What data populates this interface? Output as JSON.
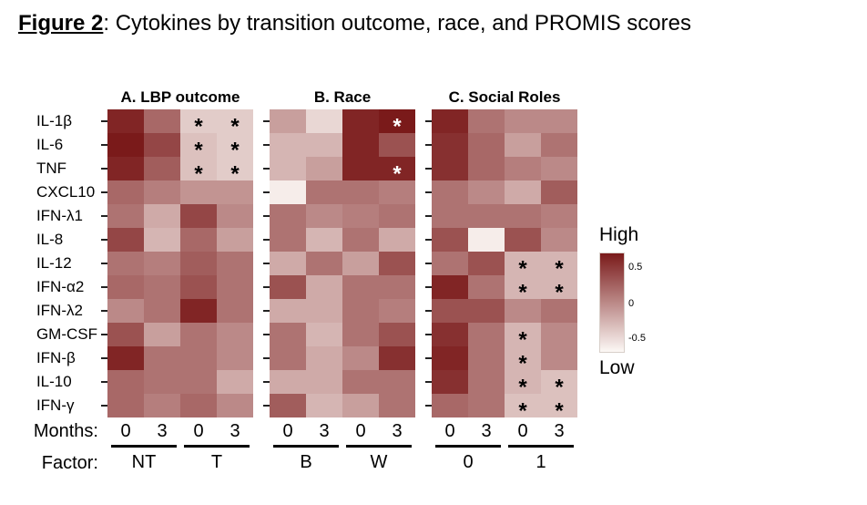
{
  "title": {
    "label": "Figure 2",
    "rest": ": Cytokines by transition outcome, race, and PROMIS scores"
  },
  "axis": {
    "months_label": "Months:",
    "factor_label": "Factor:"
  },
  "legend": {
    "high_label": "High",
    "low_label": "Low",
    "ticks": [
      "0.5",
      "0",
      "-0.5"
    ],
    "high_color": "#7a1a1a",
    "low_color": "#fcf8f5"
  },
  "chart_data": {
    "type": "heatmap",
    "value_range": [
      -0.5,
      0.5
    ],
    "rows": [
      "IL-1β",
      "IL-6",
      "TNF",
      "CXCL10",
      "IFN-λ1",
      "IL-8",
      "IL-12",
      "IFN-α2",
      "IFN-λ2",
      "GM-CSF",
      "IFN-β",
      "IL-10",
      "IFN-γ"
    ],
    "panels": [
      {
        "id": "A",
        "title": "A. LBP outcome",
        "months": [
          "0",
          "3",
          "0",
          "3"
        ],
        "factors": [
          "NT",
          "T"
        ],
        "sig_color": "#000000",
        "values": [
          [
            0.45,
            0.15,
            -0.3,
            -0.3
          ],
          [
            0.5,
            0.3,
            -0.25,
            -0.3
          ],
          [
            0.45,
            0.2,
            -0.25,
            -0.3
          ],
          [
            0.15,
            0.05,
            -0.05,
            -0.05
          ],
          [
            0.1,
            -0.15,
            0.3,
            0.0
          ],
          [
            0.3,
            -0.2,
            0.15,
            -0.1
          ],
          [
            0.1,
            0.05,
            0.2,
            0.1
          ],
          [
            0.15,
            0.1,
            0.25,
            0.1
          ],
          [
            0.0,
            0.1,
            0.45,
            0.1
          ],
          [
            0.25,
            -0.1,
            0.1,
            0.0
          ],
          [
            0.45,
            0.1,
            0.1,
            0.0
          ],
          [
            0.15,
            0.1,
            0.1,
            -0.15
          ],
          [
            0.15,
            0.05,
            0.15,
            0.0
          ]
        ],
        "sig": [
          [
            0,
            0,
            1,
            1
          ],
          [
            0,
            0,
            1,
            1
          ],
          [
            0,
            0,
            1,
            1
          ],
          [
            0,
            0,
            0,
            0
          ],
          [
            0,
            0,
            0,
            0
          ],
          [
            0,
            0,
            0,
            0
          ],
          [
            0,
            0,
            0,
            0
          ],
          [
            0,
            0,
            0,
            0
          ],
          [
            0,
            0,
            0,
            0
          ],
          [
            0,
            0,
            0,
            0
          ],
          [
            0,
            0,
            0,
            0
          ],
          [
            0,
            0,
            0,
            0
          ],
          [
            0,
            0,
            0,
            0
          ]
        ]
      },
      {
        "id": "B",
        "title": "B. Race",
        "months": [
          "0",
          "3",
          "0",
          "3"
        ],
        "factors": [
          "B",
          "W"
        ],
        "sig_color": "#ffffff",
        "values": [
          [
            -0.1,
            -0.35,
            0.45,
            0.5
          ],
          [
            -0.2,
            -0.2,
            0.45,
            0.25
          ],
          [
            -0.2,
            -0.1,
            0.45,
            0.45
          ],
          [
            -0.45,
            0.1,
            0.1,
            0.05
          ],
          [
            0.1,
            0.0,
            0.05,
            0.1
          ],
          [
            0.1,
            -0.2,
            0.1,
            -0.15
          ],
          [
            -0.15,
            0.1,
            -0.1,
            0.25
          ],
          [
            0.25,
            -0.15,
            0.1,
            0.1
          ],
          [
            -0.15,
            -0.15,
            0.1,
            0.05
          ],
          [
            0.1,
            -0.2,
            0.1,
            0.25
          ],
          [
            0.1,
            -0.15,
            0.0,
            0.4
          ],
          [
            -0.15,
            -0.15,
            0.1,
            0.1
          ],
          [
            0.2,
            -0.2,
            -0.1,
            0.1
          ]
        ],
        "sig": [
          [
            0,
            0,
            0,
            1
          ],
          [
            0,
            0,
            0,
            0
          ],
          [
            0,
            0,
            0,
            1
          ],
          [
            0,
            0,
            0,
            0
          ],
          [
            0,
            0,
            0,
            0
          ],
          [
            0,
            0,
            0,
            0
          ],
          [
            0,
            0,
            0,
            0
          ],
          [
            0,
            0,
            0,
            0
          ],
          [
            0,
            0,
            0,
            0
          ],
          [
            0,
            0,
            0,
            0
          ],
          [
            0,
            0,
            0,
            0
          ],
          [
            0,
            0,
            0,
            0
          ],
          [
            0,
            0,
            0,
            0
          ]
        ]
      },
      {
        "id": "C",
        "title": "C. Social Roles",
        "months": [
          "0",
          "3",
          "0",
          "3"
        ],
        "factors": [
          "0",
          "1"
        ],
        "sig_color": "#000000",
        "values": [
          [
            0.45,
            0.1,
            0.0,
            0.0
          ],
          [
            0.4,
            0.15,
            -0.1,
            0.1
          ],
          [
            0.4,
            0.15,
            0.05,
            0.0
          ],
          [
            0.1,
            0.0,
            -0.15,
            0.2
          ],
          [
            0.1,
            0.1,
            0.1,
            0.05
          ],
          [
            0.25,
            -0.45,
            0.25,
            0.0
          ],
          [
            0.1,
            0.25,
            -0.2,
            -0.2
          ],
          [
            0.45,
            0.1,
            -0.2,
            -0.2
          ],
          [
            0.25,
            0.25,
            0.0,
            0.1
          ],
          [
            0.4,
            0.1,
            -0.2,
            0.0
          ],
          [
            0.45,
            0.1,
            -0.2,
            0.0
          ],
          [
            0.4,
            0.1,
            -0.2,
            -0.25
          ],
          [
            0.15,
            0.1,
            -0.25,
            -0.25
          ]
        ],
        "sig": [
          [
            0,
            0,
            0,
            0
          ],
          [
            0,
            0,
            0,
            0
          ],
          [
            0,
            0,
            0,
            0
          ],
          [
            0,
            0,
            0,
            0
          ],
          [
            0,
            0,
            0,
            0
          ],
          [
            0,
            0,
            0,
            0
          ],
          [
            0,
            0,
            1,
            1
          ],
          [
            0,
            0,
            1,
            1
          ],
          [
            0,
            0,
            0,
            0
          ],
          [
            0,
            0,
            1,
            0
          ],
          [
            0,
            0,
            1,
            0
          ],
          [
            0,
            0,
            1,
            1
          ],
          [
            0,
            0,
            1,
            1
          ]
        ]
      }
    ]
  }
}
